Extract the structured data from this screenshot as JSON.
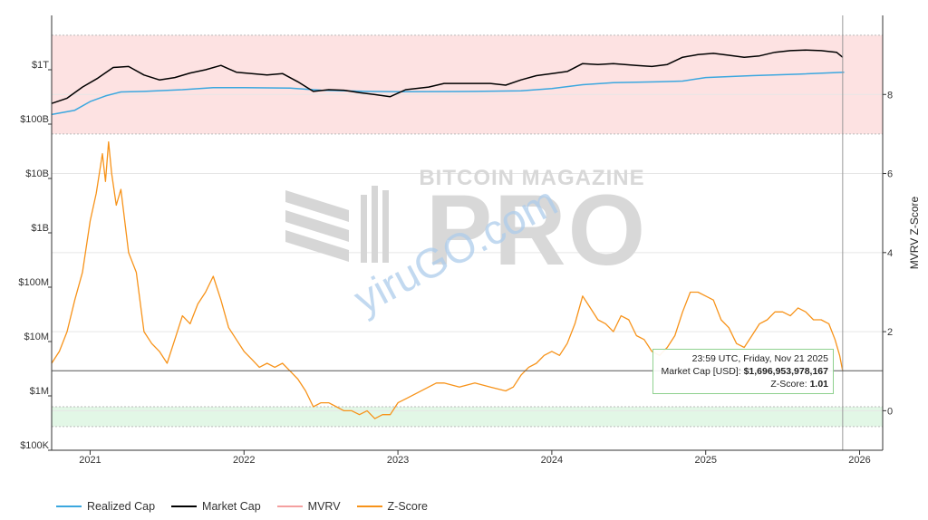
{
  "chart_data": {
    "type": "line",
    "watermark": {
      "brand": "BITCOIN MAGAZINE",
      "product": "PRO",
      "site": "yiruGO.com"
    },
    "x_ticks": [
      "2021",
      "2022",
      "2023",
      "2024",
      "2025",
      "2026"
    ],
    "xlim": [
      2020.75,
      2026.15
    ],
    "left_axis": {
      "scale": "log",
      "ylim": [
        100000,
        10000000000000
      ],
      "ticks": [
        "$100K",
        "$1M",
        "$10M",
        "$100M",
        "$1B",
        "$10B",
        "$100B",
        "$1T"
      ]
    },
    "right_axis": {
      "label": "MVRV Z-Score",
      "ylim": [
        -1,
        10
      ],
      "ticks": [
        "0",
        "2",
        "4",
        "6",
        "8"
      ]
    },
    "bands": [
      {
        "name": "overvalued-zone",
        "z_from": 7,
        "z_to": 9.5,
        "color": "#fde2e2"
      },
      {
        "name": "undervalued-zone",
        "z_from": -0.4,
        "z_to": 0.1,
        "color": "#e2f7e6"
      }
    ],
    "series": [
      {
        "name": "Realized Cap",
        "color": "#3ba7df",
        "axis": "left",
        "points": [
          [
            2020.75,
            150000000000.0
          ],
          [
            2020.9,
            180000000000.0
          ],
          [
            2021.0,
            260000000000.0
          ],
          [
            2021.1,
            330000000000.0
          ],
          [
            2021.2,
            390000000000.0
          ],
          [
            2021.35,
            400000000000.0
          ],
          [
            2021.6,
            430000000000.0
          ],
          [
            2021.8,
            470000000000.0
          ],
          [
            2022.0,
            470000000000.0
          ],
          [
            2022.3,
            460000000000.0
          ],
          [
            2022.5,
            420000000000.0
          ],
          [
            2022.8,
            400000000000.0
          ],
          [
            2023.0,
            395000000000.0
          ],
          [
            2023.5,
            400000000000.0
          ],
          [
            2023.8,
            410000000000.0
          ],
          [
            2024.0,
            450000000000.0
          ],
          [
            2024.2,
            530000000000.0
          ],
          [
            2024.4,
            580000000000.0
          ],
          [
            2024.7,
            600000000000.0
          ],
          [
            2024.85,
            620000000000.0
          ],
          [
            2025.0,
            720000000000.0
          ],
          [
            2025.3,
            780000000000.0
          ],
          [
            2025.6,
            830000000000.0
          ],
          [
            2025.9,
            900000000000.0
          ]
        ]
      },
      {
        "name": "Market Cap",
        "color": "#000000",
        "axis": "left",
        "points": [
          [
            2020.75,
            240000000000.0
          ],
          [
            2020.85,
            300000000000.0
          ],
          [
            2020.95,
            480000000000.0
          ],
          [
            2021.05,
            700000000000.0
          ],
          [
            2021.15,
            1100000000000.0
          ],
          [
            2021.25,
            1150000000000.0
          ],
          [
            2021.35,
            800000000000.0
          ],
          [
            2021.45,
            650000000000.0
          ],
          [
            2021.55,
            720000000000.0
          ],
          [
            2021.65,
            870000000000.0
          ],
          [
            2021.75,
            1000000000000.0
          ],
          [
            2021.85,
            1200000000000.0
          ],
          [
            2021.95,
            900000000000.0
          ],
          [
            2022.05,
            850000000000.0
          ],
          [
            2022.15,
            800000000000.0
          ],
          [
            2022.25,
            850000000000.0
          ],
          [
            2022.35,
            600000000000.0
          ],
          [
            2022.45,
            400000000000.0
          ],
          [
            2022.55,
            430000000000.0
          ],
          [
            2022.65,
            420000000000.0
          ],
          [
            2022.75,
            380000000000.0
          ],
          [
            2022.85,
            350000000000.0
          ],
          [
            2022.95,
            320000000000.0
          ],
          [
            2023.05,
            430000000000.0
          ],
          [
            2023.2,
            480000000000.0
          ],
          [
            2023.3,
            560000000000.0
          ],
          [
            2023.45,
            560000000000.0
          ],
          [
            2023.6,
            560000000000.0
          ],
          [
            2023.7,
            520000000000.0
          ],
          [
            2023.8,
            650000000000.0
          ],
          [
            2023.9,
            780000000000.0
          ],
          [
            2024.0,
            850000000000.0
          ],
          [
            2024.1,
            930000000000.0
          ],
          [
            2024.2,
            1300000000000.0
          ],
          [
            2024.3,
            1250000000000.0
          ],
          [
            2024.4,
            1300000000000.0
          ],
          [
            2024.55,
            1200000000000.0
          ],
          [
            2024.65,
            1150000000000.0
          ],
          [
            2024.75,
            1250000000000.0
          ],
          [
            2024.85,
            1700000000000.0
          ],
          [
            2024.95,
            1900000000000.0
          ],
          [
            2025.05,
            2000000000000.0
          ],
          [
            2025.15,
            1850000000000.0
          ],
          [
            2025.25,
            1700000000000.0
          ],
          [
            2025.35,
            1800000000000.0
          ],
          [
            2025.45,
            2100000000000.0
          ],
          [
            2025.55,
            2250000000000.0
          ],
          [
            2025.65,
            2300000000000.0
          ],
          [
            2025.75,
            2250000000000.0
          ],
          [
            2025.85,
            2100000000000.0
          ],
          [
            2025.89,
            1700000000000.0
          ]
        ]
      },
      {
        "name": "MVRV",
        "color": "#f4a0a0",
        "axis": "right",
        "points": []
      },
      {
        "name": "Z-Score",
        "color": "#f7931a",
        "axis": "right",
        "points": [
          [
            2020.75,
            1.2
          ],
          [
            2020.8,
            1.5
          ],
          [
            2020.85,
            2.0
          ],
          [
            2020.9,
            2.8
          ],
          [
            2020.95,
            3.5
          ],
          [
            2021.0,
            4.8
          ],
          [
            2021.04,
            5.5
          ],
          [
            2021.08,
            6.5
          ],
          [
            2021.1,
            5.8
          ],
          [
            2021.12,
            6.8
          ],
          [
            2021.14,
            6.0
          ],
          [
            2021.17,
            5.2
          ],
          [
            2021.2,
            5.6
          ],
          [
            2021.25,
            4.0
          ],
          [
            2021.3,
            3.5
          ],
          [
            2021.35,
            2.0
          ],
          [
            2021.4,
            1.7
          ],
          [
            2021.45,
            1.5
          ],
          [
            2021.5,
            1.2
          ],
          [
            2021.55,
            1.8
          ],
          [
            2021.6,
            2.4
          ],
          [
            2021.65,
            2.2
          ],
          [
            2021.7,
            2.7
          ],
          [
            2021.75,
            3.0
          ],
          [
            2021.8,
            3.4
          ],
          [
            2021.85,
            2.8
          ],
          [
            2021.9,
            2.1
          ],
          [
            2021.95,
            1.8
          ],
          [
            2022.0,
            1.5
          ],
          [
            2022.05,
            1.3
          ],
          [
            2022.1,
            1.1
          ],
          [
            2022.15,
            1.2
          ],
          [
            2022.2,
            1.1
          ],
          [
            2022.25,
            1.2
          ],
          [
            2022.3,
            1.0
          ],
          [
            2022.35,
            0.8
          ],
          [
            2022.4,
            0.5
          ],
          [
            2022.45,
            0.1
          ],
          [
            2022.5,
            0.2
          ],
          [
            2022.55,
            0.2
          ],
          [
            2022.6,
            0.1
          ],
          [
            2022.65,
            0.0
          ],
          [
            2022.7,
            0.0
          ],
          [
            2022.75,
            -0.1
          ],
          [
            2022.8,
            0.0
          ],
          [
            2022.85,
            -0.2
          ],
          [
            2022.9,
            -0.1
          ],
          [
            2022.95,
            -0.1
          ],
          [
            2023.0,
            0.2
          ],
          [
            2023.05,
            0.3
          ],
          [
            2023.1,
            0.4
          ],
          [
            2023.2,
            0.6
          ],
          [
            2023.25,
            0.7
          ],
          [
            2023.3,
            0.7
          ],
          [
            2023.4,
            0.6
          ],
          [
            2023.5,
            0.7
          ],
          [
            2023.6,
            0.6
          ],
          [
            2023.7,
            0.5
          ],
          [
            2023.75,
            0.6
          ],
          [
            2023.8,
            0.9
          ],
          [
            2023.85,
            1.1
          ],
          [
            2023.9,
            1.2
          ],
          [
            2023.95,
            1.4
          ],
          [
            2024.0,
            1.5
          ],
          [
            2024.05,
            1.4
          ],
          [
            2024.1,
            1.7
          ],
          [
            2024.15,
            2.2
          ],
          [
            2024.2,
            2.9
          ],
          [
            2024.25,
            2.6
          ],
          [
            2024.3,
            2.3
          ],
          [
            2024.35,
            2.2
          ],
          [
            2024.4,
            2.0
          ],
          [
            2024.45,
            2.4
          ],
          [
            2024.5,
            2.3
          ],
          [
            2024.55,
            1.9
          ],
          [
            2024.6,
            1.8
          ],
          [
            2024.65,
            1.5
          ],
          [
            2024.7,
            1.4
          ],
          [
            2024.75,
            1.6
          ],
          [
            2024.8,
            1.9
          ],
          [
            2024.85,
            2.5
          ],
          [
            2024.9,
            3.0
          ],
          [
            2024.95,
            3.0
          ],
          [
            2025.0,
            2.9
          ],
          [
            2025.05,
            2.8
          ],
          [
            2025.1,
            2.3
          ],
          [
            2025.15,
            2.1
          ],
          [
            2025.2,
            1.7
          ],
          [
            2025.25,
            1.6
          ],
          [
            2025.3,
            1.9
          ],
          [
            2025.35,
            2.2
          ],
          [
            2025.4,
            2.3
          ],
          [
            2025.45,
            2.5
          ],
          [
            2025.5,
            2.5
          ],
          [
            2025.55,
            2.4
          ],
          [
            2025.6,
            2.6
          ],
          [
            2025.65,
            2.5
          ],
          [
            2025.7,
            2.3
          ],
          [
            2025.75,
            2.3
          ],
          [
            2025.8,
            2.2
          ],
          [
            2025.84,
            1.8
          ],
          [
            2025.87,
            1.4
          ],
          [
            2025.89,
            1.01
          ]
        ]
      }
    ],
    "cursor_x": 2025.89,
    "tooltip": {
      "time": "23:59 UTC, Friday, Nov 21 2025",
      "market_cap_label": "Market Cap [USD]:",
      "market_cap_value": "$1,696,953,978,167",
      "zscore_label": "Z-Score:",
      "zscore_value": "1.01"
    }
  }
}
